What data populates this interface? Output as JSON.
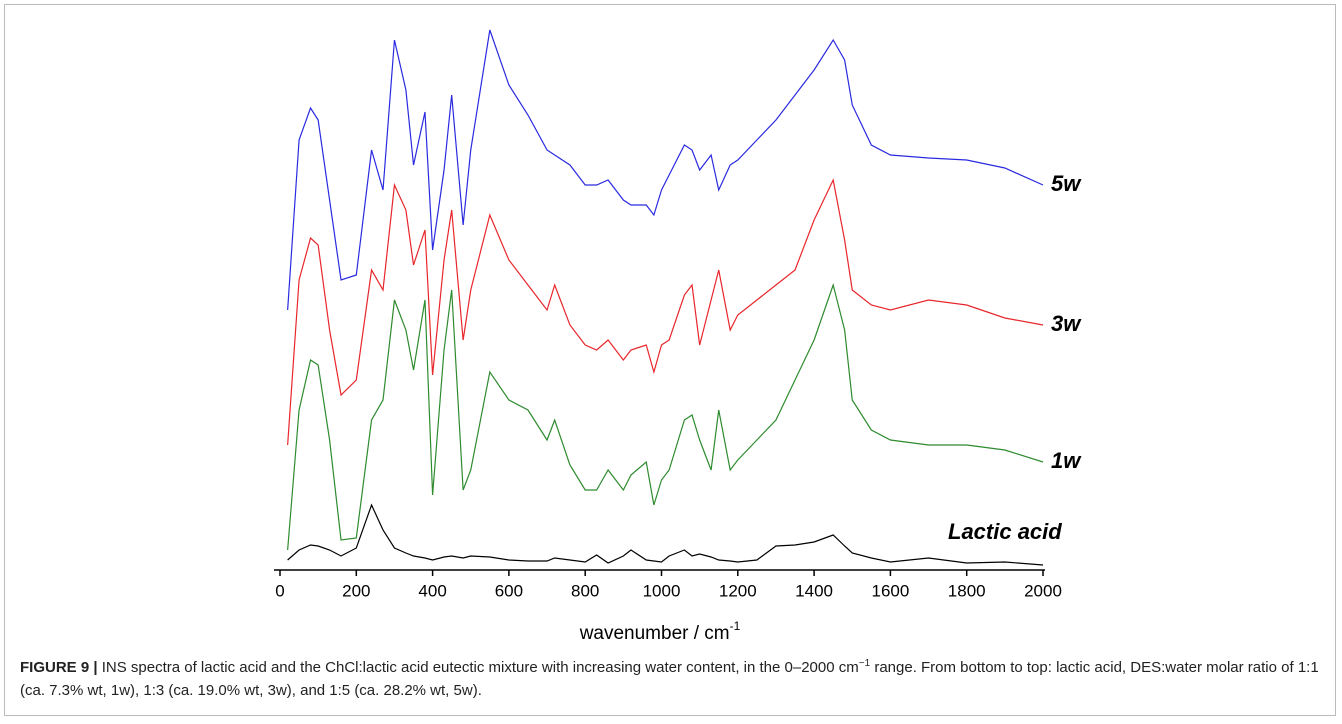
{
  "chart_data": {
    "type": "line",
    "xlabel": "wavenumber / cm",
    "xlabel_sup": "-1",
    "xlim": [
      0,
      2000
    ],
    "xticks": [
      0,
      200,
      400,
      600,
      800,
      1000,
      1200,
      1400,
      1600,
      1800,
      2000
    ],
    "ylim": [
      0,
      540
    ],
    "x": [
      20,
      50,
      80,
      100,
      130,
      160,
      200,
      240,
      270,
      300,
      330,
      350,
      380,
      400,
      430,
      450,
      480,
      500,
      550,
      600,
      650,
      700,
      720,
      760,
      800,
      830,
      860,
      900,
      920,
      960,
      980,
      1000,
      1020,
      1060,
      1080,
      1100,
      1130,
      1150,
      1180,
      1200,
      1250,
      1300,
      1350,
      1400,
      1450,
      1480,
      1500,
      1550,
      1600,
      1700,
      1800,
      1900,
      2000
    ],
    "series": [
      {
        "name": "Lactic acid",
        "color": "#000000",
        "values": [
          5,
          15,
          20,
          19,
          15,
          9,
          17,
          60,
          35,
          17,
          12,
          9,
          7,
          5,
          8,
          9,
          7,
          9,
          8,
          5,
          4,
          4,
          7,
          5,
          3,
          10,
          2,
          9,
          15,
          5,
          4,
          3,
          9,
          15,
          9,
          11,
          8,
          5,
          4,
          3,
          5,
          19,
          20,
          23,
          30,
          19,
          12,
          7,
          3,
          7,
          2,
          3,
          0
        ]
      },
      {
        "name": "1w",
        "color": "#2e8b2e",
        "values": [
          15,
          155,
          205,
          200,
          125,
          25,
          27,
          145,
          165,
          265,
          235,
          195,
          265,
          70,
          215,
          275,
          75,
          95,
          193,
          165,
          155,
          125,
          145,
          100,
          75,
          75,
          95,
          75,
          90,
          103,
          60,
          85,
          95,
          145,
          150,
          125,
          95,
          155,
          95,
          105,
          125,
          145,
          185,
          225,
          280,
          235,
          165,
          135,
          125,
          120,
          120,
          115,
          103
        ]
      },
      {
        "name": "3w",
        "color": "#e8262b",
        "values": [
          120,
          285,
          327,
          320,
          235,
          170,
          185,
          295,
          275,
          380,
          355,
          300,
          335,
          190,
          305,
          355,
          225,
          275,
          350,
          305,
          280,
          255,
          280,
          240,
          220,
          215,
          225,
          205,
          215,
          220,
          193,
          220,
          225,
          270,
          280,
          220,
          265,
          295,
          235,
          250,
          265,
          280,
          295,
          345,
          385,
          325,
          275,
          260,
          255,
          265,
          260,
          247,
          240
        ]
      },
      {
        "name": "5w",
        "color": "#2a2ae0",
        "values": [
          255,
          425,
          457,
          445,
          365,
          285,
          290,
          415,
          375,
          525,
          475,
          400,
          453,
          315,
          395,
          470,
          340,
          415,
          535,
          480,
          450,
          415,
          410,
          400,
          380,
          380,
          385,
          365,
          360,
          360,
          350,
          375,
          390,
          420,
          415,
          395,
          410,
          375,
          400,
          405,
          425,
          445,
          470,
          495,
          525,
          505,
          460,
          420,
          410,
          407,
          405,
          397,
          380
        ]
      }
    ]
  },
  "caption": {
    "label": "FIGURE 9 |",
    "text_1": "INS spectra of lactic acid and the ChCl:lactic acid eutectic mixture with increasing water content, in the 0–2000 cm",
    "sup": "−1",
    "text_2": " range. From bottom to top: lactic acid, DES:water molar ratio of 1:1 (ca. 7.3% wt, 1w), 1:3 (ca. 19.0% wt, 3w), and 1:5 (ca. 28.2% wt, 5w)."
  }
}
